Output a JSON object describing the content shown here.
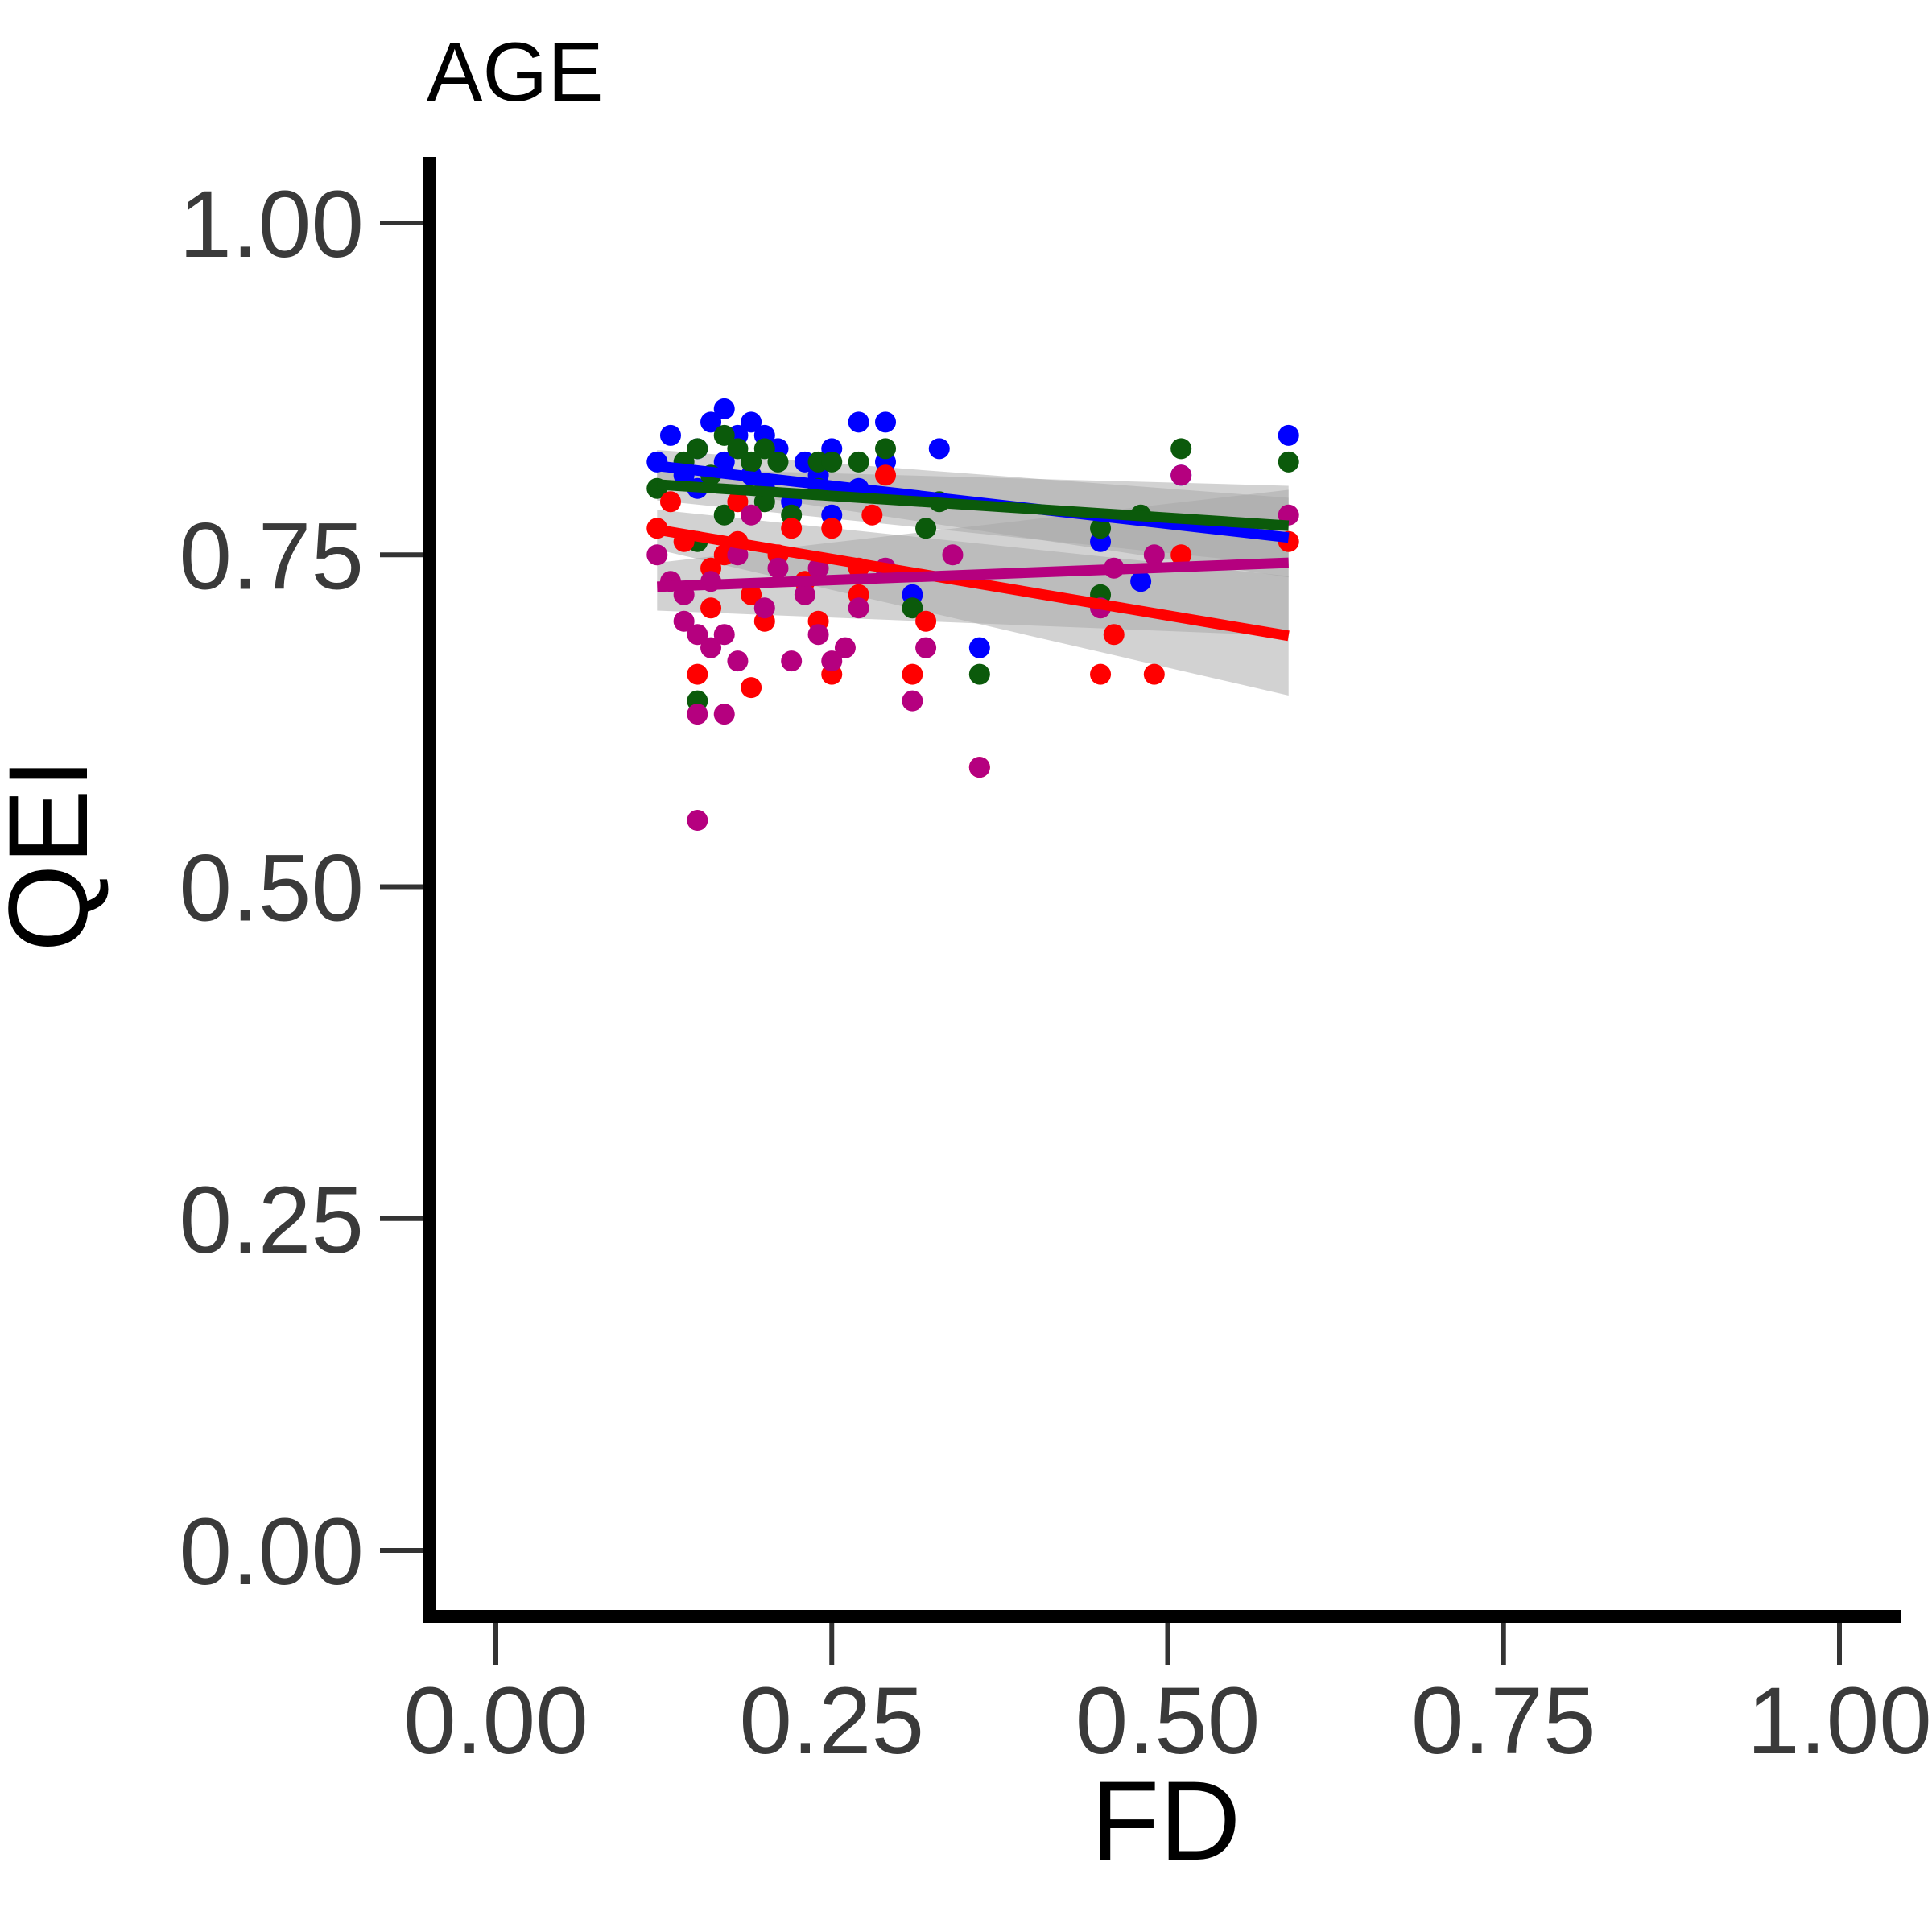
{
  "chart_data": {
    "type": "scatter",
    "title": "AGE",
    "xlabel": "FD",
    "ylabel": "QEI",
    "xlim": [
      -0.05,
      1.05
    ],
    "ylim": [
      -0.05,
      1.05
    ],
    "xticks": [
      "0.00",
      "0.25",
      "0.50",
      "0.75",
      "1.00"
    ],
    "yticks": [
      "0.00",
      "0.25",
      "0.50",
      "0.75",
      "1.00"
    ],
    "grid": false,
    "legend": "none",
    "series": [
      {
        "color": "#0000ff",
        "points": [
          [
            0.12,
            0.82
          ],
          [
            0.13,
            0.84
          ],
          [
            0.14,
            0.81
          ],
          [
            0.15,
            0.83
          ],
          [
            0.15,
            0.8
          ],
          [
            0.16,
            0.85
          ],
          [
            0.17,
            0.86
          ],
          [
            0.17,
            0.82
          ],
          [
            0.18,
            0.84
          ],
          [
            0.19,
            0.81
          ],
          [
            0.19,
            0.85
          ],
          [
            0.2,
            0.84
          ],
          [
            0.2,
            0.8
          ],
          [
            0.21,
            0.83
          ],
          [
            0.22,
            0.79
          ],
          [
            0.23,
            0.82
          ],
          [
            0.24,
            0.81
          ],
          [
            0.25,
            0.83
          ],
          [
            0.25,
            0.78
          ],
          [
            0.27,
            0.85
          ],
          [
            0.27,
            0.8
          ],
          [
            0.29,
            0.85
          ],
          [
            0.29,
            0.82
          ],
          [
            0.31,
            0.72
          ],
          [
            0.33,
            0.83
          ],
          [
            0.36,
            0.68
          ],
          [
            0.45,
            0.76
          ],
          [
            0.48,
            0.73
          ],
          [
            0.51,
            0.81
          ],
          [
            0.59,
            0.84
          ]
        ],
        "fit": [
          0.817,
          0.763
        ],
        "band_halfwidth": [
          0.012,
          0.03
        ]
      },
      {
        "color": "#0b5a0b",
        "points": [
          [
            0.12,
            0.8
          ],
          [
            0.14,
            0.82
          ],
          [
            0.15,
            0.83
          ],
          [
            0.15,
            0.76
          ],
          [
            0.16,
            0.81
          ],
          [
            0.17,
            0.84
          ],
          [
            0.17,
            0.78
          ],
          [
            0.18,
            0.83
          ],
          [
            0.19,
            0.82
          ],
          [
            0.2,
            0.83
          ],
          [
            0.2,
            0.79
          ],
          [
            0.21,
            0.82
          ],
          [
            0.22,
            0.78
          ],
          [
            0.24,
            0.82
          ],
          [
            0.24,
            0.8
          ],
          [
            0.25,
            0.82
          ],
          [
            0.27,
            0.82
          ],
          [
            0.29,
            0.83
          ],
          [
            0.31,
            0.71
          ],
          [
            0.32,
            0.77
          ],
          [
            0.33,
            0.79
          ],
          [
            0.36,
            0.66
          ],
          [
            0.45,
            0.77
          ],
          [
            0.45,
            0.72
          ],
          [
            0.48,
            0.78
          ],
          [
            0.51,
            0.83
          ],
          [
            0.59,
            0.82
          ],
          [
            0.15,
            0.64
          ]
        ],
        "fit": [
          0.803,
          0.772
        ],
        "band_halfwidth": [
          0.012,
          0.03
        ]
      },
      {
        "color": "#ff0000",
        "points": [
          [
            0.12,
            0.77
          ],
          [
            0.13,
            0.79
          ],
          [
            0.14,
            0.76
          ],
          [
            0.15,
            0.66
          ],
          [
            0.16,
            0.74
          ],
          [
            0.16,
            0.71
          ],
          [
            0.17,
            0.75
          ],
          [
            0.18,
            0.79
          ],
          [
            0.18,
            0.76
          ],
          [
            0.19,
            0.65
          ],
          [
            0.19,
            0.72
          ],
          [
            0.2,
            0.7
          ],
          [
            0.21,
            0.75
          ],
          [
            0.22,
            0.77
          ],
          [
            0.23,
            0.73
          ],
          [
            0.24,
            0.7
          ],
          [
            0.25,
            0.66
          ],
          [
            0.25,
            0.77
          ],
          [
            0.27,
            0.74
          ],
          [
            0.27,
            0.72
          ],
          [
            0.28,
            0.78
          ],
          [
            0.29,
            0.81
          ],
          [
            0.31,
            0.66
          ],
          [
            0.32,
            0.7
          ],
          [
            0.36,
            0.59
          ],
          [
            0.45,
            0.66
          ],
          [
            0.46,
            0.69
          ],
          [
            0.49,
            0.66
          ],
          [
            0.51,
            0.75
          ],
          [
            0.59,
            0.76
          ]
        ],
        "fit": [
          0.769,
          0.689
        ],
        "band_halfwidth": [
          0.015,
          0.045
        ]
      },
      {
        "color": "#b5007f",
        "points": [
          [
            0.12,
            0.75
          ],
          [
            0.13,
            0.73
          ],
          [
            0.14,
            0.72
          ],
          [
            0.14,
            0.7
          ],
          [
            0.15,
            0.63
          ],
          [
            0.15,
            0.55
          ],
          [
            0.15,
            0.69
          ],
          [
            0.16,
            0.73
          ],
          [
            0.16,
            0.68
          ],
          [
            0.17,
            0.63
          ],
          [
            0.17,
            0.69
          ],
          [
            0.18,
            0.67
          ],
          [
            0.18,
            0.75
          ],
          [
            0.19,
            0.78
          ],
          [
            0.2,
            0.71
          ],
          [
            0.21,
            0.74
          ],
          [
            0.22,
            0.67
          ],
          [
            0.23,
            0.72
          ],
          [
            0.24,
            0.69
          ],
          [
            0.24,
            0.74
          ],
          [
            0.25,
            0.67
          ],
          [
            0.26,
            0.68
          ],
          [
            0.27,
            0.71
          ],
          [
            0.29,
            0.74
          ],
          [
            0.31,
            0.64
          ],
          [
            0.32,
            0.68
          ],
          [
            0.34,
            0.75
          ],
          [
            0.36,
            0.59
          ],
          [
            0.45,
            0.71
          ],
          [
            0.46,
            0.74
          ],
          [
            0.49,
            0.75
          ],
          [
            0.51,
            0.81
          ],
          [
            0.59,
            0.78
          ]
        ],
        "fit": [
          0.726,
          0.744
        ],
        "band_halfwidth": [
          0.018,
          0.055
        ]
      }
    ],
    "fit_x_range": [
      0.12,
      0.59
    ],
    "band_color": "#a6a6a6"
  }
}
